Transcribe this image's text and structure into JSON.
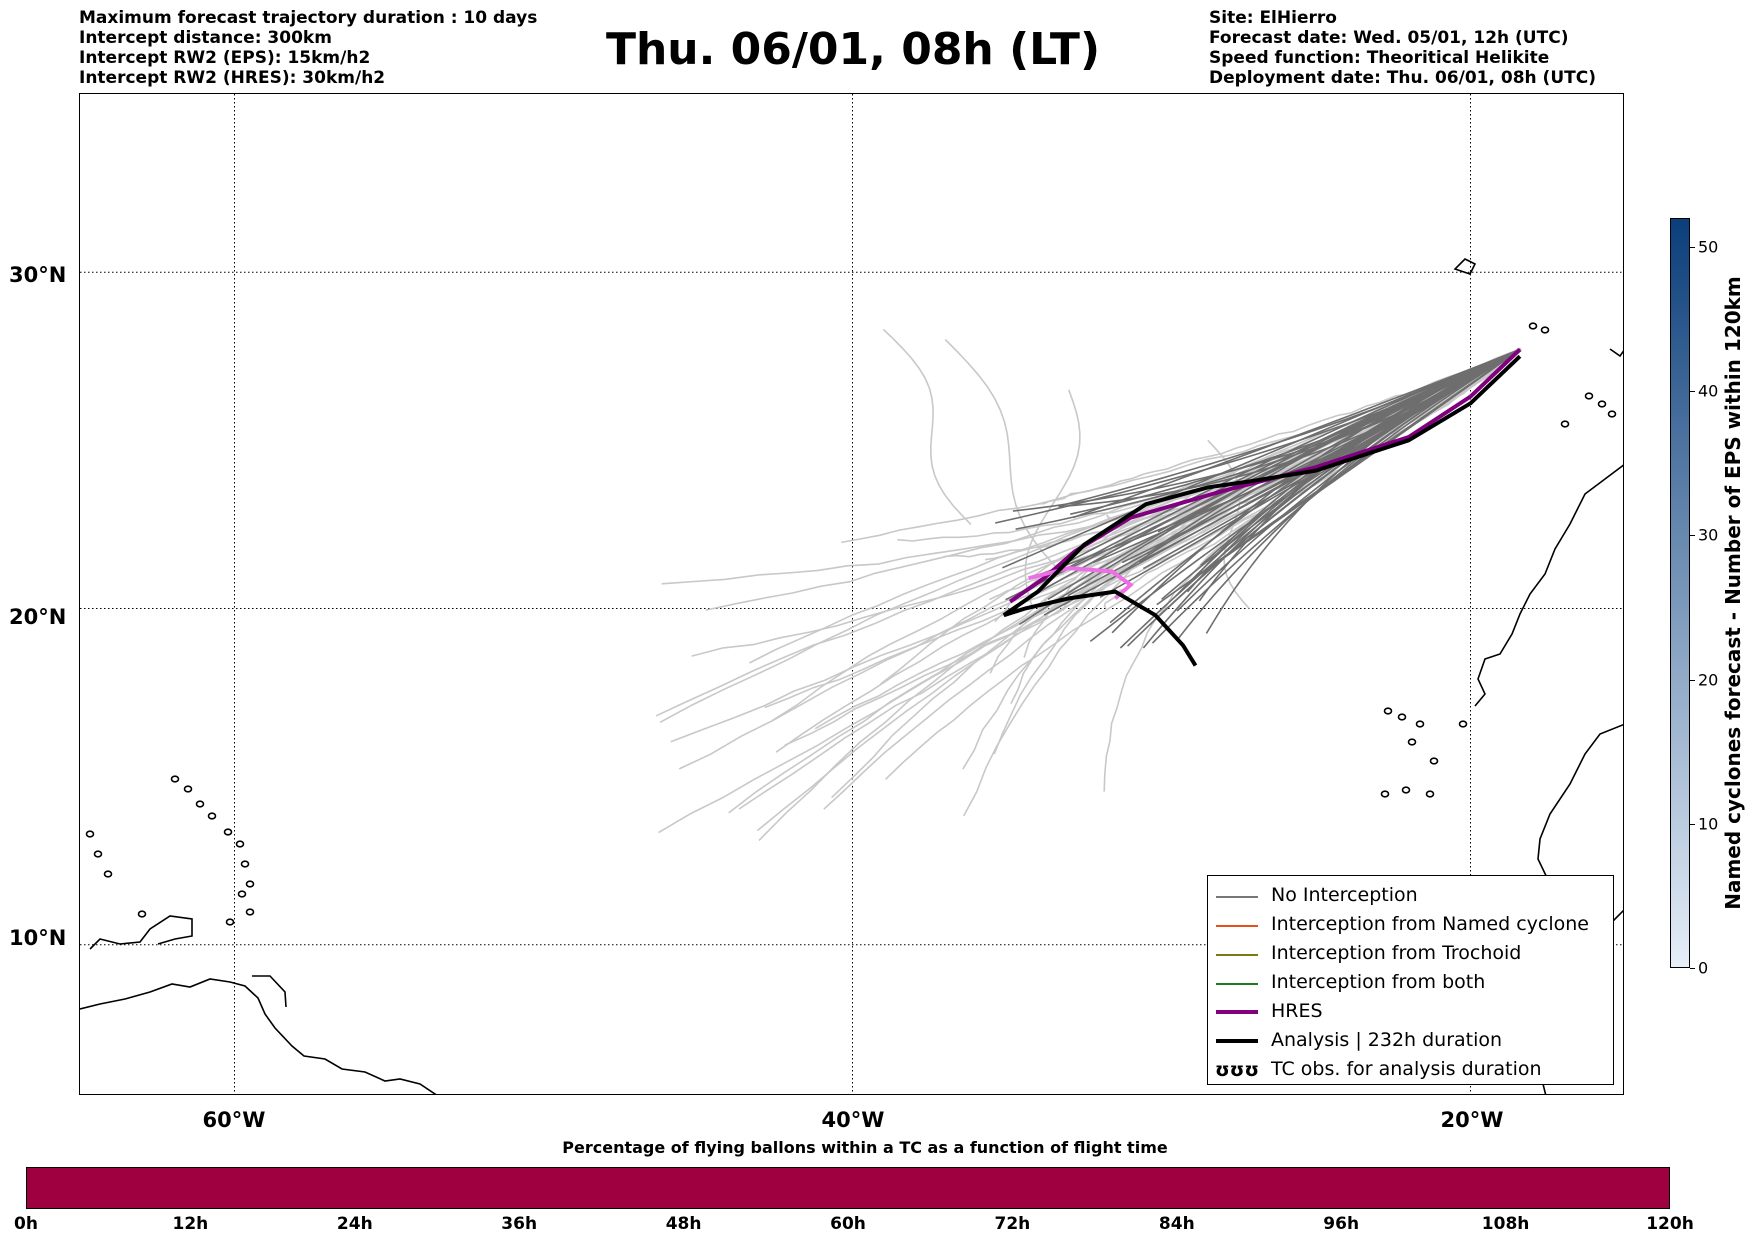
{
  "header_left": [
    "Maximum forecast trajectory duration : 10 days",
    "Intercept distance: 300km",
    "Intercept RW2 (EPS):  15km/h2",
    "Intercept RW2 (HRES): 30km/h2"
  ],
  "title": "Thu. 06/01, 08h (LT)",
  "header_right": [
    "Site: ElHierro",
    "Forecast date: Wed. 05/01, 12h (UTC)",
    "Speed function: Theoritical Helikite",
    "Deployment date: Thu. 06/01, 08h (UTC)"
  ],
  "map": {
    "lon_labels": [
      "60°W",
      "40°W",
      "20°W"
    ],
    "lat_labels": [
      "30°N",
      "20°N",
      "10°N"
    ],
    "lon_values": [
      -60,
      -40,
      -20
    ],
    "lat_values": [
      30,
      20,
      10
    ],
    "lon_range": [
      -65,
      -15
    ],
    "lat_range": [
      5.5,
      35.3
    ],
    "site": {
      "lon": -18.4,
      "lat": 27.7
    }
  },
  "legend": [
    {
      "label": "No Interception",
      "color": "#777777",
      "width": 1.5
    },
    {
      "label": "Interception from Named cyclone",
      "color": "#e8501a",
      "width": 1.5
    },
    {
      "label": "Interception from Trochoid",
      "color": "#7a7a10",
      "width": 1.5
    },
    {
      "label": "Interception from both",
      "color": "#1e7a1e",
      "width": 1.5
    },
    {
      "label": "HRES",
      "color": "#800080",
      "width": 4
    },
    {
      "label": "Analysis | 232h duration",
      "color": "#000000",
      "width": 4
    },
    {
      "label": "TC obs. for analysis duration",
      "symbol": "ʊʊʊ"
    }
  ],
  "colorbar_right": {
    "label": "Named cyclones forecast - Number of EPS within 120km",
    "min": 0,
    "max": 52,
    "ticks": [
      "0",
      "10",
      "20",
      "30",
      "40",
      "50"
    ],
    "tick_values": [
      0,
      10,
      20,
      30,
      40,
      50
    ],
    "color_low": "#e6eef8",
    "color_high": "#0b3e7a"
  },
  "colorbar_bottom": {
    "label": "Percentage of flying ballons within a TC as a function of flight time",
    "ticks": [
      "0h",
      "12h",
      "24h",
      "36h",
      "48h",
      "60h",
      "72h",
      "84h",
      "96h",
      "108h",
      "120h"
    ],
    "tick_hours": [
      0,
      12,
      24,
      36,
      48,
      60,
      72,
      84,
      96,
      108,
      120
    ],
    "color": "#9e0040"
  }
}
